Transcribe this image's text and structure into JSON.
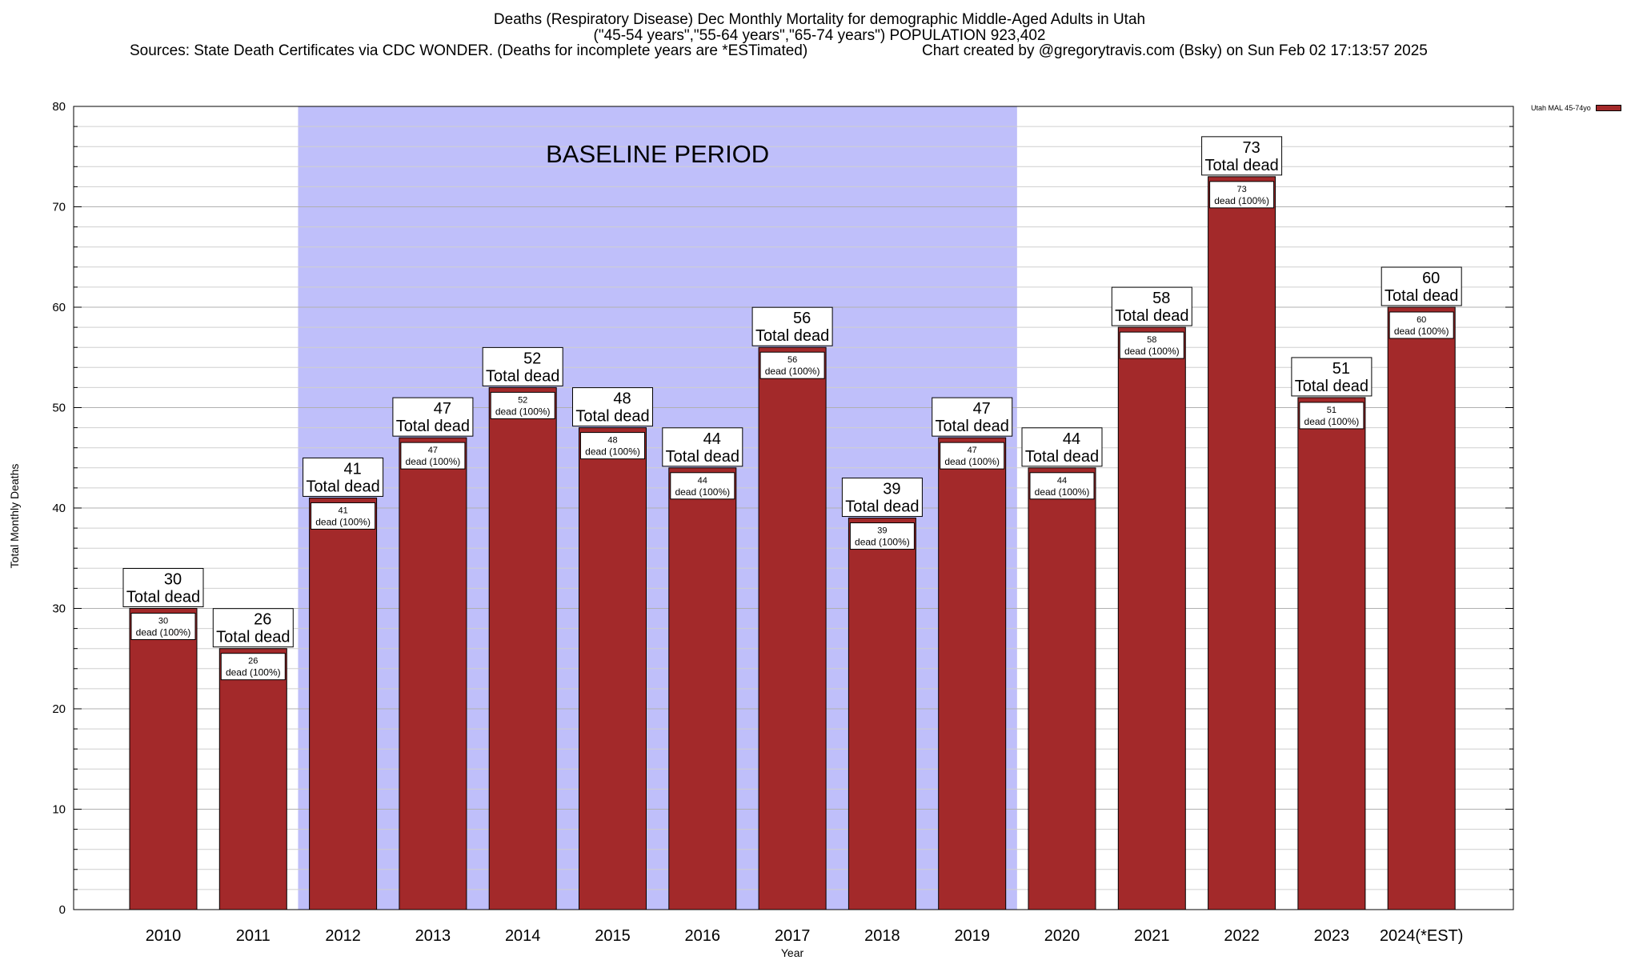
{
  "chart_data": {
    "type": "bar",
    "title": "Deaths (Respiratory Disease) Dec Monthly Mortality for demographic Middle-Aged Adults in Utah",
    "subtitle": "(\"45-54 years\",\"55-64 years\",\"65-74 years\") POPULATION 923,402",
    "source": "Sources: State Death Certificates via CDC WONDER. (Deaths for incomplete years are *ESTimated)",
    "credit": "Chart created by @gregorytravis.com (Bsky) on Sun Feb 02 17:13:57 2025",
    "xlabel": "Year",
    "ylabel": "Total Monthly Deaths",
    "ylim": [
      0,
      80
    ],
    "yticks": [
      0,
      10,
      20,
      30,
      40,
      50,
      60,
      70,
      80
    ],
    "categories": [
      "2010",
      "2011",
      "2012",
      "2013",
      "2014",
      "2015",
      "2016",
      "2017",
      "2018",
      "2019",
      "2020",
      "2021",
      "2022",
      "2023",
      "2024(*EST)"
    ],
    "series": [
      {
        "name": "Utah MAL 45-74yo",
        "values": [
          30,
          26,
          41,
          47,
          52,
          48,
          44,
          56,
          39,
          47,
          44,
          58,
          73,
          51,
          60
        ],
        "color": "#a3292a"
      }
    ],
    "label_total_suffix": "Total dead",
    "label_inner_suffix": "dead (100%)",
    "baseline": {
      "label": "BASELINE PERIOD",
      "from": "2012",
      "to": "2019",
      "color": "#bfbffa"
    },
    "legend_position": "top-right"
  }
}
